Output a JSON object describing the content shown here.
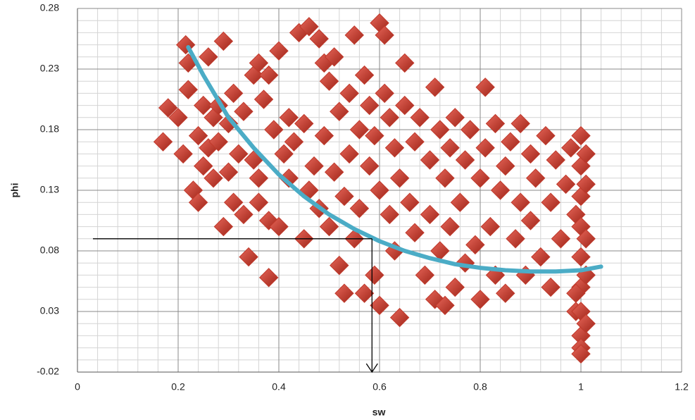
{
  "chart_data": {
    "type": "scatter",
    "x_label": "sw",
    "y_label": "phi",
    "xlim": [
      0,
      1.2
    ],
    "ylim": [
      -0.02,
      0.28
    ],
    "xticks": [
      0,
      0.2,
      0.4,
      0.6,
      0.8,
      1,
      1.2
    ],
    "yticks": [
      -0.02,
      0.03,
      0.08,
      0.13,
      0.18,
      0.23,
      0.28
    ],
    "xminorticks": [
      0.04,
      0.08,
      0.12,
      0.16,
      0.24,
      0.28,
      0.32,
      0.36,
      0.44,
      0.48,
      0.52,
      0.56,
      0.64,
      0.68,
      0.72,
      0.76,
      0.84,
      0.88,
      0.92,
      0.96,
      1.04,
      1.08,
      1.12,
      1.16
    ],
    "yminorticks": [
      -0.01,
      0,
      0.01,
      0.02,
      0.04,
      0.05,
      0.06,
      0.07,
      0.09,
      0.1,
      0.11,
      0.12,
      0.14,
      0.15,
      0.16,
      0.17,
      0.19,
      0.2,
      0.21,
      0.22,
      0.24,
      0.25,
      0.26,
      0.27
    ],
    "grid": true,
    "series": [
      {
        "type": "scatter",
        "color": "#c0392b",
        "x": [
          0.17,
          0.18,
          0.2,
          0.21,
          0.22,
          0.22,
          0.215,
          0.23,
          0.24,
          0.24,
          0.25,
          0.25,
          0.26,
          0.26,
          0.27,
          0.27,
          0.28,
          0.28,
          0.29,
          0.29,
          0.3,
          0.3,
          0.31,
          0.31,
          0.32,
          0.33,
          0.33,
          0.34,
          0.35,
          0.35,
          0.36,
          0.36,
          0.36,
          0.37,
          0.38,
          0.38,
          0.38,
          0.39,
          0.4,
          0.4,
          0.41,
          0.42,
          0.42,
          0.43,
          0.44,
          0.45,
          0.45,
          0.46,
          0.46,
          0.47,
          0.48,
          0.48,
          0.49,
          0.49,
          0.5,
          0.5,
          0.51,
          0.51,
          0.52,
          0.52,
          0.53,
          0.53,
          0.54,
          0.54,
          0.55,
          0.55,
          0.56,
          0.56,
          0.57,
          0.57,
          0.58,
          0.58,
          0.59,
          0.59,
          0.6,
          0.6,
          0.6,
          0.61,
          0.61,
          0.62,
          0.62,
          0.63,
          0.63,
          0.64,
          0.64,
          0.65,
          0.65,
          0.66,
          0.67,
          0.67,
          0.68,
          0.69,
          0.7,
          0.7,
          0.71,
          0.71,
          0.72,
          0.72,
          0.73,
          0.73,
          0.74,
          0.74,
          0.75,
          0.75,
          0.76,
          0.77,
          0.77,
          0.78,
          0.79,
          0.8,
          0.8,
          0.81,
          0.81,
          0.82,
          0.83,
          0.83,
          0.84,
          0.85,
          0.85,
          0.86,
          0.87,
          0.88,
          0.88,
          0.89,
          0.9,
          0.9,
          0.91,
          0.92,
          0.93,
          0.94,
          0.94,
          0.95,
          0.96,
          0.97,
          0.98,
          0.99,
          0.99,
          1,
          1,
          1,
          1,
          1,
          1,
          1,
          1,
          1,
          1,
          1.01,
          1.01,
          1.01,
          1.01,
          1.01,
          0.99
        ],
        "values": [
          0.17,
          0.198,
          0.19,
          0.16,
          0.213,
          0.235,
          0.25,
          0.13,
          0.12,
          0.175,
          0.15,
          0.2,
          0.24,
          0.165,
          0.14,
          0.19,
          0.2,
          0.17,
          0.253,
          0.1,
          0.185,
          0.145,
          0.21,
          0.12,
          0.16,
          0.11,
          0.195,
          0.075,
          0.155,
          0.225,
          0.235,
          0.12,
          0.14,
          0.205,
          0.058,
          0.225,
          0.105,
          0.18,
          0.245,
          0.1,
          0.16,
          0.14,
          0.19,
          0.17,
          0.26,
          0.09,
          0.185,
          0.265,
          0.13,
          0.15,
          0.255,
          0.115,
          0.235,
          0.175,
          0.22,
          0.1,
          0.24,
          0.145,
          0.195,
          0.068,
          0.045,
          0.125,
          0.21,
          0.16,
          0.258,
          0.09,
          0.18,
          0.115,
          0.045,
          0.225,
          0.15,
          0.2,
          0.06,
          0.175,
          0.035,
          0.268,
          0.13,
          0.258,
          0.21,
          0.11,
          0.19,
          0.165,
          0.08,
          0.025,
          0.14,
          0.235,
          0.2,
          0.12,
          0.17,
          0.095,
          0.19,
          0.06,
          0.155,
          0.11,
          0.04,
          0.215,
          0.18,
          0.08,
          0.035,
          0.14,
          0.165,
          0.1,
          0.05,
          0.19,
          0.12,
          0.155,
          0.07,
          0.18,
          0.085,
          0.04,
          0.14,
          0.215,
          0.165,
          0.1,
          0.06,
          0.185,
          0.13,
          0.15,
          0.045,
          0.17,
          0.09,
          0.12,
          0.185,
          0.06,
          0.16,
          0.105,
          0.14,
          0.075,
          0.175,
          0.05,
          0.12,
          0.155,
          0.09,
          0.135,
          0.165,
          0.03,
          0.11,
          0.175,
          0.15,
          0.125,
          0.1,
          0.075,
          0.05,
          0.03,
          0.01,
          0,
          -0.005,
          0.16,
          0.135,
          0.09,
          0.06,
          0.02,
          0.045
        ]
      },
      {
        "type": "line",
        "color": "#4bacc6",
        "x": [
          0.22,
          0.25,
          0.3,
          0.35,
          0.4,
          0.45,
          0.5,
          0.55,
          0.6,
          0.65,
          0.7,
          0.75,
          0.8,
          0.85,
          0.9,
          0.95,
          1,
          1.04
        ],
        "values": [
          0.248,
          0.225,
          0.19,
          0.165,
          0.143,
          0.125,
          0.11,
          0.098,
          0.088,
          0.08,
          0.074,
          0.069,
          0.066,
          0.064,
          0.063,
          0.063,
          0.064,
          0.067
        ]
      }
    ],
    "reference": {
      "x": 0.585,
      "y": 0.09
    }
  }
}
